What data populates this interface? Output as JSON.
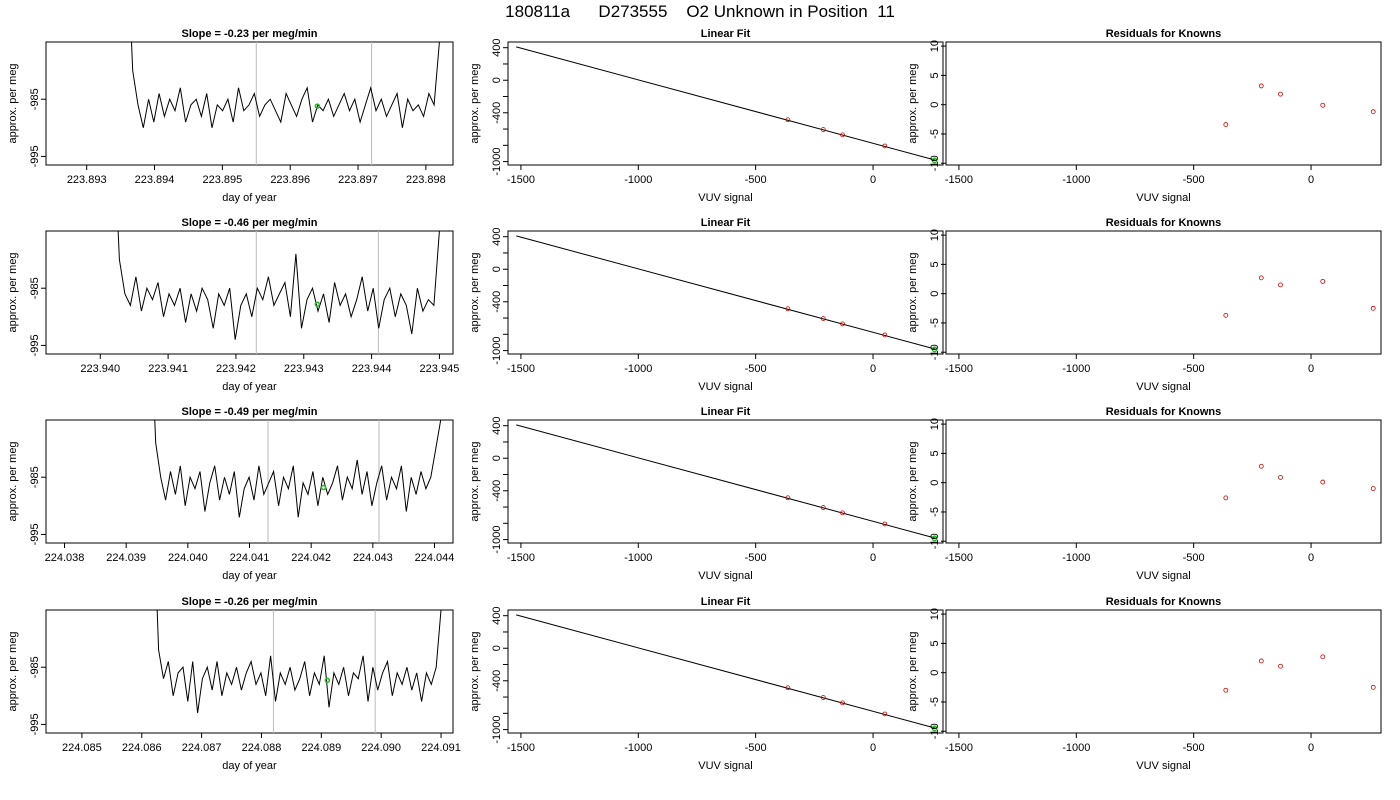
{
  "title": "180811a      D273555    O2 Unknown in Position  11",
  "chart_data": [
    {
      "type": "line",
      "row": 0,
      "col": 0,
      "title": "Slope =  -0.23  per meg/min",
      "xlabel": "day of year",
      "ylabel": "approx. per meg",
      "xlim": [
        223.8924,
        223.8984
      ],
      "ylim": [
        -996.5,
        -975
      ],
      "xticks": [
        "223.893",
        "223.894",
        "223.895",
        "223.896",
        "223.897",
        "223.898"
      ],
      "xtick_values": [
        223.893,
        223.894,
        223.895,
        223.896,
        223.897,
        223.898
      ],
      "yticks": [
        "-985",
        "-995"
      ],
      "ytick_values": [
        -985,
        -995
      ],
      "vlines": [
        223.8955,
        223.8972
      ],
      "marker": {
        "x": 223.8964,
        "y": -986.2
      },
      "series": [
        {
          "x_start": 223.8936,
          "x_end": 223.8982,
          "values": [
            -958,
            -980,
            -986,
            -990,
            -985,
            -989,
            -984,
            -988,
            -985,
            -987,
            -983,
            -989,
            -986,
            -985,
            -988,
            -984,
            -990,
            -986,
            -987,
            -985,
            -989,
            -983,
            -987,
            -986,
            -984,
            -988,
            -986,
            -985,
            -987,
            -989,
            -984,
            -986,
            -988,
            -985,
            -983,
            -989,
            -986,
            -987,
            -985,
            -988,
            -986,
            -984,
            -987,
            -985,
            -989,
            -986,
            -983,
            -987,
            -985,
            -988,
            -986,
            -984,
            -990,
            -985,
            -987,
            -986,
            -988,
            -984,
            -986,
            -975
          ]
        }
      ]
    },
    {
      "type": "scatter",
      "row": 0,
      "col": 1,
      "title": "Linear Fit",
      "xlabel": "VUV signal",
      "ylabel": "approx. per meg",
      "xlim": [
        -1555,
        298
      ],
      "ylim": [
        -1042,
        470
      ],
      "xticks": [
        "-1500",
        "-1000",
        "-500",
        "0"
      ],
      "xtick_values": [
        -1500,
        -1000,
        -500,
        0
      ],
      "yticks": [
        "400",
        "0",
        "-400",
        "-1000"
      ],
      "ytick_values": [
        400,
        0,
        -400,
        -1000
      ],
      "yminor": [
        200,
        -200,
        -600,
        -800
      ],
      "fit_line": {
        "x": [
          -1520,
          265
        ],
        "y": [
          410,
          -982
        ]
      },
      "points": {
        "x": [
          -363,
          -212,
          -130,
          50
        ],
        "y": [
          -486,
          -606,
          -672,
          -808
        ]
      },
      "unknown": {
        "x": 262,
        "y": -985
      }
    },
    {
      "type": "scatter",
      "row": 0,
      "col": 2,
      "title": "Residuals for Knowns",
      "xlabel": "VUV signal",
      "ylabel": "approx. per meg",
      "xlim": [
        -1555,
        298
      ],
      "ylim": [
        -10.3,
        10.7
      ],
      "xticks": [
        "-1500",
        "-1000",
        "-500",
        "0"
      ],
      "xtick_values": [
        -1500,
        -1000,
        -500,
        0
      ],
      "yticks": [
        "10",
        "5",
        "0",
        "-5",
        "-10"
      ],
      "ytick_values": [
        10,
        5,
        0,
        -5,
        -10
      ],
      "points": {
        "x": [
          -363,
          -212,
          -130,
          50,
          265
        ],
        "y": [
          -3.4,
          3.2,
          1.8,
          -0.1,
          -1.2
        ]
      }
    },
    {
      "type": "line",
      "row": 1,
      "col": 0,
      "title": "Slope =  -0.46  per meg/min",
      "xlabel": "day of year",
      "ylabel": "approx. per meg",
      "xlim": [
        223.9392,
        223.9452
      ],
      "ylim": [
        -996.5,
        -975
      ],
      "xticks": [
        "223.940",
        "223.941",
        "223.942",
        "223.943",
        "223.944",
        "223.945"
      ],
      "xtick_values": [
        223.94,
        223.941,
        223.942,
        223.943,
        223.944,
        223.945
      ],
      "yticks": [
        "-985",
        "-995"
      ],
      "ytick_values": [
        -985,
        -995
      ],
      "vlines": [
        223.9423,
        223.9441
      ],
      "marker": {
        "x": 223.9432,
        "y": -987.8
      },
      "series": [
        {
          "x_start": 223.9402,
          "x_end": 223.945,
          "values": [
            -958,
            -980,
            -986,
            -988,
            -983,
            -989,
            -985,
            -987,
            -984,
            -990,
            -986,
            -988,
            -985,
            -991,
            -986,
            -989,
            -985,
            -987,
            -992,
            -986,
            -988,
            -985,
            -994,
            -988,
            -986,
            -990,
            -985,
            -987,
            -983,
            -988,
            -986,
            -984,
            -990,
            -979,
            -992,
            -987,
            -985,
            -989,
            -986,
            -991,
            -984,
            -988,
            -986,
            -990,
            -987,
            -983,
            -989,
            -985,
            -992,
            -987,
            -985,
            -990,
            -986,
            -988,
            -993,
            -985,
            -989,
            -987,
            -988,
            -975
          ]
        }
      ]
    },
    {
      "type": "scatter",
      "row": 1,
      "col": 1,
      "title": "Linear Fit",
      "xlabel": "VUV signal",
      "ylabel": "approx. per meg",
      "xlim": [
        -1555,
        298
      ],
      "ylim": [
        -1042,
        470
      ],
      "xticks": [
        "-1500",
        "-1000",
        "-500",
        "0"
      ],
      "xtick_values": [
        -1500,
        -1000,
        -500,
        0
      ],
      "yticks": [
        "400",
        "0",
        "-400",
        "-1000"
      ],
      "ytick_values": [
        400,
        0,
        -400,
        -1000
      ],
      "yminor": [
        200,
        -200,
        -600,
        -800
      ],
      "fit_line": {
        "x": [
          -1520,
          265
        ],
        "y": [
          410,
          -982
        ]
      },
      "points": {
        "x": [
          -363,
          -212,
          -130,
          50
        ],
        "y": [
          -486,
          -606,
          -672,
          -808
        ]
      },
      "unknown": {
        "x": 262,
        "y": -985
      }
    },
    {
      "type": "scatter",
      "row": 1,
      "col": 2,
      "title": "Residuals for Knowns",
      "xlabel": "VUV signal",
      "ylabel": "approx. per meg",
      "xlim": [
        -1555,
        298
      ],
      "ylim": [
        -10.3,
        10.7
      ],
      "xticks": [
        "-1500",
        "-1000",
        "-500",
        "0"
      ],
      "xtick_values": [
        -1500,
        -1000,
        -500,
        0
      ],
      "yticks": [
        "10",
        "5",
        "0",
        "-5",
        "-10"
      ],
      "ytick_values": [
        10,
        5,
        0,
        -5,
        -10
      ],
      "points": {
        "x": [
          -363,
          -212,
          -130,
          50,
          265
        ],
        "y": [
          -3.7,
          2.7,
          1.5,
          2.1,
          -2.5
        ]
      }
    },
    {
      "type": "line",
      "row": 2,
      "col": 0,
      "title": "Slope =  -0.49  per meg/min",
      "xlabel": "day of year",
      "ylabel": "approx. per meg",
      "xlim": [
        224.0377,
        224.0443
      ],
      "ylim": [
        -996.5,
        -975
      ],
      "xticks": [
        "224.038",
        "224.039",
        "224.040",
        "224.041",
        "224.042",
        "224.043",
        "224.044"
      ],
      "xtick_values": [
        224.038,
        224.039,
        224.04,
        224.041,
        224.042,
        224.043,
        224.044
      ],
      "yticks": [
        "-985",
        "-995"
      ],
      "ytick_values": [
        -985,
        -995
      ],
      "vlines": [
        224.0413,
        224.0431
      ],
      "marker": {
        "x": 224.0422,
        "y": -986.8
      },
      "series": [
        {
          "x_start": 224.0394,
          "x_end": 224.0441,
          "values": [
            -958,
            -979,
            -985,
            -989,
            -984,
            -988,
            -983,
            -990,
            -985,
            -987,
            -984,
            -991,
            -986,
            -983,
            -989,
            -985,
            -988,
            -984,
            -992,
            -987,
            -985,
            -989,
            -983,
            -988,
            -986,
            -984,
            -990,
            -985,
            -987,
            -983,
            -992,
            -986,
            -988,
            -984,
            -990,
            -985,
            -988,
            -986,
            -983,
            -989,
            -985,
            -987,
            -982,
            -988,
            -984,
            -990,
            -986,
            -983,
            -989,
            -985,
            -987,
            -983,
            -991,
            -985,
            -988,
            -984,
            -987,
            -985,
            -980,
            -975
          ]
        }
      ]
    },
    {
      "type": "scatter",
      "row": 2,
      "col": 1,
      "title": "Linear Fit",
      "xlabel": "VUV signal",
      "ylabel": "approx. per meg",
      "xlim": [
        -1555,
        298
      ],
      "ylim": [
        -1042,
        470
      ],
      "xticks": [
        "-1500",
        "-1000",
        "-500",
        "0"
      ],
      "xtick_values": [
        -1500,
        -1000,
        -500,
        0
      ],
      "yticks": [
        "400",
        "0",
        "-400",
        "-1000"
      ],
      "ytick_values": [
        400,
        0,
        -400,
        -1000
      ],
      "yminor": [
        200,
        -200,
        -600,
        -800
      ],
      "fit_line": {
        "x": [
          -1520,
          265
        ],
        "y": [
          410,
          -982
        ]
      },
      "points": {
        "x": [
          -363,
          -212,
          -130,
          50
        ],
        "y": [
          -486,
          -606,
          -672,
          -808
        ]
      },
      "unknown": {
        "x": 262,
        "y": -985
      }
    },
    {
      "type": "scatter",
      "row": 2,
      "col": 2,
      "title": "Residuals for Knowns",
      "xlabel": "VUV signal",
      "ylabel": "approx. per meg",
      "xlim": [
        -1555,
        298
      ],
      "ylim": [
        -10.3,
        10.7
      ],
      "xticks": [
        "-1500",
        "-1000",
        "-500",
        "0"
      ],
      "xtick_values": [
        -1500,
        -1000,
        -500,
        0
      ],
      "yticks": [
        "10",
        "5",
        "0",
        "-5",
        "-10"
      ],
      "ytick_values": [
        10,
        5,
        0,
        -5,
        -10
      ],
      "points": {
        "x": [
          -363,
          -212,
          -130,
          50,
          265
        ],
        "y": [
          -2.6,
          2.8,
          0.9,
          0.1,
          -1.0
        ]
      }
    },
    {
      "type": "line",
      "row": 3,
      "col": 0,
      "title": "Slope =  -0.26  per meg/min",
      "xlabel": "day of year",
      "ylabel": "approx. per meg",
      "xlim": [
        224.0844,
        224.0912
      ],
      "ylim": [
        -996.5,
        -975
      ],
      "xticks": [
        "224.085",
        "224.086",
        "224.087",
        "224.088",
        "224.089",
        "224.090",
        "224.091"
      ],
      "xtick_values": [
        224.085,
        224.086,
        224.087,
        224.088,
        224.089,
        224.09,
        224.091
      ],
      "yticks": [
        "-985",
        "-995"
      ],
      "ytick_values": [
        -985,
        -995
      ],
      "vlines": [
        224.0882,
        224.0899
      ],
      "marker": {
        "x": 224.0891,
        "y": -987.3
      },
      "series": [
        {
          "x_start": 224.0862,
          "x_end": 224.091,
          "values": [
            -958,
            -982,
            -987,
            -984,
            -990,
            -986,
            -985,
            -991,
            -984,
            -993,
            -987,
            -985,
            -989,
            -984,
            -990,
            -986,
            -988,
            -985,
            -989,
            -986,
            -984,
            -988,
            -986,
            -990,
            -983,
            -991,
            -986,
            -988,
            -985,
            -989,
            -987,
            -984,
            -990,
            -986,
            -988,
            -983,
            -992,
            -986,
            -988,
            -985,
            -990,
            -986,
            -987,
            -983,
            -991,
            -985,
            -989,
            -986,
            -984,
            -990,
            -986,
            -988,
            -985,
            -989,
            -986,
            -991,
            -986,
            -988,
            -985,
            -975
          ]
        }
      ]
    },
    {
      "type": "scatter",
      "row": 3,
      "col": 1,
      "title": "Linear Fit",
      "xlabel": "VUV signal",
      "ylabel": "approx. per meg",
      "xlim": [
        -1555,
        298
      ],
      "ylim": [
        -1042,
        470
      ],
      "xticks": [
        "-1500",
        "-1000",
        "-500",
        "0"
      ],
      "xtick_values": [
        -1500,
        -1000,
        -500,
        0
      ],
      "yticks": [
        "400",
        "0",
        "-400",
        "-1000"
      ],
      "ytick_values": [
        400,
        0,
        -400,
        -1000
      ],
      "yminor": [
        200,
        -200,
        -600,
        -800
      ],
      "fit_line": {
        "x": [
          -1520,
          265
        ],
        "y": [
          410,
          -982
        ]
      },
      "points": {
        "x": [
          -363,
          -212,
          -130,
          50
        ],
        "y": [
          -486,
          -606,
          -672,
          -808
        ]
      },
      "unknown": {
        "x": 262,
        "y": -985
      }
    },
    {
      "type": "scatter",
      "row": 3,
      "col": 2,
      "title": "Residuals for Knowns",
      "xlabel": "VUV signal",
      "ylabel": "approx. per meg",
      "xlim": [
        -1555,
        298
      ],
      "ylim": [
        -10.3,
        10.7
      ],
      "xticks": [
        "-1500",
        "-1000",
        "-500",
        "0"
      ],
      "xtick_values": [
        -1500,
        -1000,
        -500,
        0
      ],
      "yticks": [
        "10",
        "5",
        "0",
        "-5",
        "-10"
      ],
      "ytick_values": [
        10,
        5,
        0,
        -5,
        -10
      ],
      "points": {
        "x": [
          -363,
          -212,
          -130,
          50,
          265
        ],
        "y": [
          -3.0,
          2.0,
          1.1,
          2.7,
          -2.5
        ]
      }
    }
  ],
  "colors": {
    "line": "#000000",
    "known_point": "#cc0000",
    "unknown_point": "#22bb22",
    "vline": "#bbbbbb"
  }
}
